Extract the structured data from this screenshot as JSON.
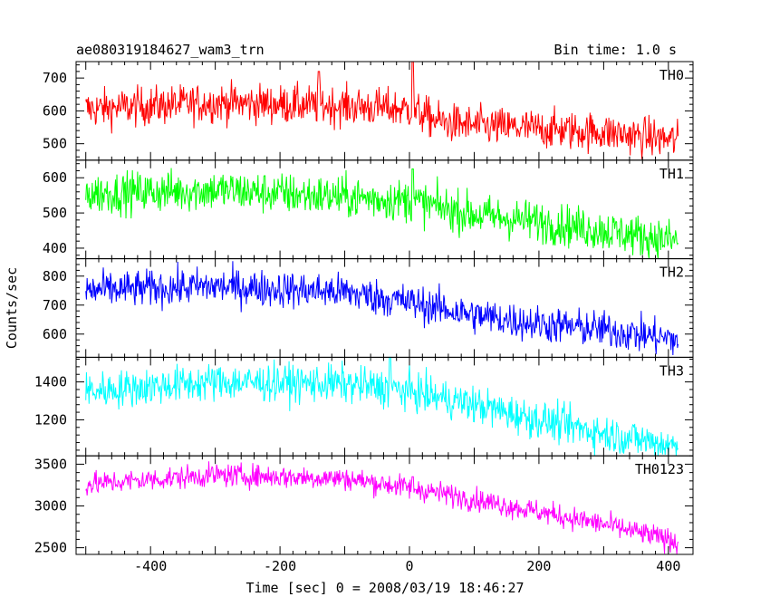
{
  "chart_data": {
    "type": "line",
    "title": "ae080319184627_wam3_trn",
    "subtitle": "Bin time: 1.0 s",
    "xlabel": "Time [sec] 0 = 2008/03/19 18:46:27",
    "ylabel": "Counts/sec",
    "xlim": [
      -515,
      438
    ],
    "xticks": [
      "-400",
      "-200",
      "0",
      "200",
      "400"
    ],
    "x_tick_values": [
      -400,
      -200,
      0,
      200,
      400
    ],
    "x_range": [
      -500,
      415
    ],
    "bin_time_s": 1.0,
    "panels": [
      {
        "name": "TH0",
        "color": "#ff0000",
        "ylim": [
          450,
          750
        ],
        "yticks": [
          "500",
          "600",
          "700"
        ],
        "ytick_values": [
          500,
          600,
          700
        ],
        "trend": [
          [
            -500,
            605
          ],
          [
            -300,
            625
          ],
          [
            -100,
            615
          ],
          [
            0,
            605
          ],
          [
            50,
            565
          ],
          [
            100,
            555
          ],
          [
            200,
            545
          ],
          [
            300,
            535
          ],
          [
            415,
            510
          ]
        ],
        "noise": 30,
        "spikes": [
          [
            5,
            750
          ],
          [
            -140,
            720
          ]
        ]
      },
      {
        "name": "TH1",
        "color": "#00ff00",
        "ylim": [
          370,
          650
        ],
        "yticks": [
          "400",
          "500",
          "600"
        ],
        "ytick_values": [
          400,
          500,
          600
        ],
        "trend": [
          [
            -500,
            555
          ],
          [
            -300,
            565
          ],
          [
            -100,
            545
          ],
          [
            0,
            535
          ],
          [
            100,
            495
          ],
          [
            200,
            475
          ],
          [
            300,
            450
          ],
          [
            415,
            420
          ]
        ],
        "noise": 30,
        "spikes": [
          [
            5,
            625
          ]
        ]
      },
      {
        "name": "TH2",
        "color": "#0000ff",
        "ylim": [
          520,
          860
        ],
        "yticks": [
          "600",
          "700",
          "800"
        ],
        "ytick_values": [
          600,
          700,
          800
        ],
        "trend": [
          [
            -500,
            750
          ],
          [
            -300,
            765
          ],
          [
            -100,
            745
          ],
          [
            0,
            710
          ],
          [
            100,
            665
          ],
          [
            200,
            635
          ],
          [
            300,
            615
          ],
          [
            415,
            580
          ]
        ],
        "noise": 32,
        "spikes": []
      },
      {
        "name": "TH3",
        "color": "#00ffff",
        "ylim": [
          1010,
          1530
        ],
        "yticks": [
          "1200",
          "1400"
        ],
        "ytick_values": [
          1200,
          1400
        ],
        "trend": [
          [
            -500,
            1350
          ],
          [
            -300,
            1400
          ],
          [
            -100,
            1390
          ],
          [
            0,
            1350
          ],
          [
            100,
            1280
          ],
          [
            200,
            1200
          ],
          [
            300,
            1130
          ],
          [
            415,
            1060
          ]
        ],
        "noise": 50,
        "spikes": [
          [
            -30,
            1530
          ]
        ]
      },
      {
        "name": "TH0123",
        "color": "#ff00ff",
        "ylim": [
          2420,
          3600
        ],
        "yticks": [
          "2500",
          "3000",
          "3500"
        ],
        "ytick_values": [
          2500,
          3000,
          3500
        ],
        "trend": [
          [
            -500,
            3260
          ],
          [
            -300,
            3370
          ],
          [
            -100,
            3330
          ],
          [
            0,
            3220
          ],
          [
            100,
            3080
          ],
          [
            200,
            2930
          ],
          [
            300,
            2780
          ],
          [
            415,
            2570
          ]
        ],
        "noise": 70,
        "spikes": [
          [
            5,
            3350
          ]
        ]
      }
    ]
  }
}
